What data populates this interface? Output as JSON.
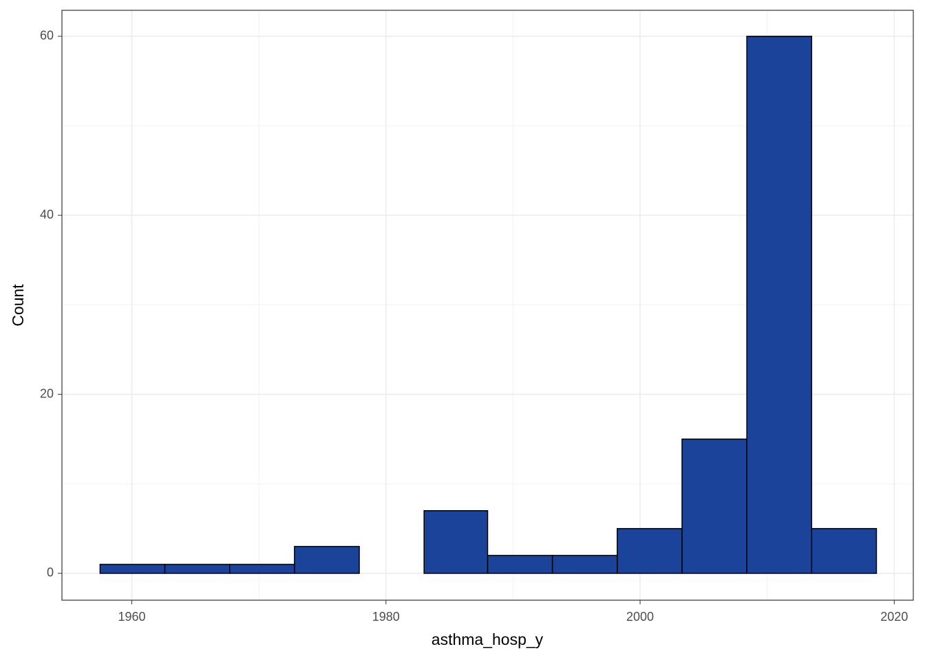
{
  "chart_data": {
    "type": "histogram",
    "x_label": "asthma_hosp_y",
    "y_label": "Count",
    "bins": [
      1957.5,
      1962.6,
      1967.7,
      1972.8,
      1977.9,
      1983.0,
      1988.0,
      1993.1,
      1998.2,
      2003.3,
      2008.4,
      2013.5,
      2018.6
    ],
    "counts": [
      1,
      1,
      1,
      3,
      0,
      7,
      2,
      2,
      5,
      15,
      60,
      5
    ],
    "color": "#1a4399",
    "xlim": [
      1954.5,
      2021.5
    ],
    "ylim": [
      -3,
      62.9
    ],
    "xticks": [
      1960,
      1980,
      2000,
      2020
    ],
    "yticks": [
      0,
      20,
      40,
      60
    ],
    "xminor": [
      1970,
      1990,
      2010
    ],
    "yminor": [
      10,
      30,
      50
    ],
    "grid": true
  }
}
